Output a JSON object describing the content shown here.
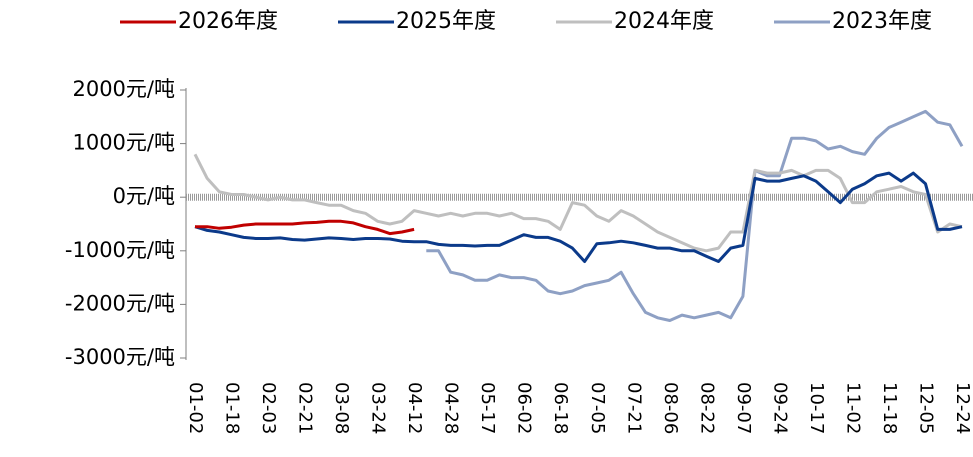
{
  "chart_data": {
    "type": "line",
    "categories": [
      "01-02",
      null,
      null,
      "01-18",
      null,
      null,
      "02-03",
      null,
      null,
      "02-21",
      null,
      null,
      "03-08",
      null,
      null,
      "03-24",
      null,
      null,
      "04-12",
      null,
      null,
      "04-28",
      null,
      null,
      "05-17",
      null,
      null,
      "06-02",
      null,
      null,
      "06-18",
      null,
      null,
      "07-05",
      null,
      null,
      "07-21",
      null,
      null,
      "08-06",
      null,
      null,
      "08-22",
      null,
      null,
      "09-07",
      null,
      null,
      "09-24",
      null,
      null,
      "10-17",
      null,
      null,
      "11-02",
      null,
      null,
      "11-18",
      null,
      null,
      "12-05",
      null,
      null,
      "12-24"
    ],
    "series": [
      {
        "name": "2026年度",
        "color": "#c00000",
        "values": [
          -550,
          -550,
          -580,
          -560,
          -520,
          -500,
          -500,
          -500,
          -500,
          -480,
          -470,
          -450,
          -450,
          -480,
          -550,
          -600,
          -680,
          -650,
          -600,
          null,
          null,
          null,
          null,
          null,
          null,
          null,
          null,
          null,
          null,
          null,
          null,
          null,
          null,
          null,
          null,
          null,
          null,
          null,
          null,
          null,
          null,
          null,
          null,
          null,
          null,
          null,
          null,
          null,
          null,
          null,
          null,
          null,
          null,
          null,
          null,
          null,
          null,
          null,
          null,
          null,
          null,
          null,
          null,
          null
        ]
      },
      {
        "name": "2025年度",
        "color": "#0b3a8a",
        "values": [
          -550,
          -620,
          -650,
          -700,
          -750,
          -770,
          -770,
          -760,
          -790,
          -800,
          -780,
          -760,
          -770,
          -790,
          -770,
          -770,
          -780,
          -820,
          -830,
          -830,
          -880,
          -900,
          -900,
          -910,
          -900,
          -900,
          -800,
          -700,
          -750,
          -750,
          -820,
          -950,
          -1200,
          -870,
          -850,
          -820,
          -850,
          -900,
          -950,
          -950,
          -1000,
          -1000,
          -1100,
          -1200,
          -950,
          -900,
          350,
          300,
          300,
          350,
          400,
          300,
          100,
          -100,
          150,
          250,
          400,
          450,
          300,
          450,
          250,
          -600,
          -600,
          -550
        ]
      },
      {
        "name": "2024年度",
        "color": "#bfbfbf",
        "values": [
          800,
          350,
          100,
          50,
          50,
          0,
          -50,
          0,
          -50,
          -50,
          -100,
          -150,
          -150,
          -250,
          -300,
          -450,
          -500,
          -450,
          -250,
          -300,
          -350,
          -300,
          -350,
          -300,
          -300,
          -350,
          -300,
          -400,
          -400,
          -450,
          -600,
          -100,
          -150,
          -350,
          -450,
          -250,
          -350,
          -500,
          -650,
          -750,
          -850,
          -950,
          -1000,
          -950,
          -650,
          -650,
          500,
          450,
          450,
          500,
          400,
          500,
          500,
          350,
          -100,
          -100,
          100,
          150,
          200,
          100,
          50,
          -650,
          -500,
          -550
        ]
      },
      {
        "name": "2023年度",
        "color": "#8ea0c4",
        "values": [
          null,
          null,
          null,
          null,
          null,
          null,
          null,
          null,
          null,
          null,
          null,
          null,
          null,
          null,
          null,
          null,
          null,
          null,
          null,
          -1000,
          -1000,
          -1400,
          -1450,
          -1550,
          -1550,
          -1450,
          -1500,
          -1500,
          -1550,
          -1750,
          -1800,
          -1750,
          -1650,
          -1600,
          -1550,
          -1400,
          -1800,
          -2150,
          -2250,
          -2300,
          -2200,
          -2250,
          -2200,
          -2150,
          -2250,
          -1850,
          500,
          400,
          400,
          1100,
          1100,
          1050,
          900,
          950,
          850,
          800,
          1100,
          1300,
          1400,
          1500,
          1600,
          1400,
          1350,
          950
        ]
      }
    ],
    "ylim": [
      -3000,
      2000
    ],
    "yticks": [
      {
        "value": -3000,
        "label": "-3000元/吨"
      },
      {
        "value": -2000,
        "label": "-2000元/吨"
      },
      {
        "value": -1000,
        "label": "-1000元/吨"
      },
      {
        "value": 0,
        "label": "0元/吨"
      },
      {
        "value": 1000,
        "label": "1000元/吨"
      },
      {
        "value": 2000,
        "label": "2000元/吨"
      }
    ],
    "legend": "top"
  }
}
